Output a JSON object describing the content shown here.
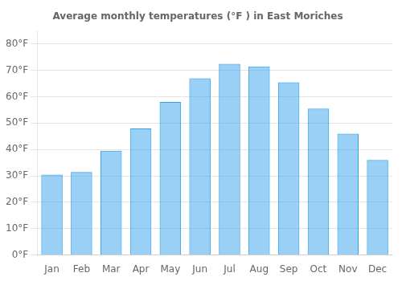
{
  "chart_data": {
    "type": "bar",
    "title": "Average monthly temperatures (°F ) in East Moriches",
    "categories": [
      "Jan",
      "Feb",
      "Mar",
      "Apr",
      "May",
      "Jun",
      "Jul",
      "Aug",
      "Sep",
      "Oct",
      "Nov",
      "Dec"
    ],
    "values": [
      30.5,
      31.5,
      39.5,
      48.0,
      58.0,
      67.0,
      72.5,
      71.5,
      65.5,
      55.5,
      46.0,
      36.0
    ],
    "ylim": [
      0,
      85
    ],
    "yticks": [
      {
        "value": 0,
        "label": "0°F"
      },
      {
        "value": 10,
        "label": "10°F"
      },
      {
        "value": 20,
        "label": "20°F"
      },
      {
        "value": 30,
        "label": "30°F"
      },
      {
        "value": 40,
        "label": "40°F"
      },
      {
        "value": 50,
        "label": "50°F"
      },
      {
        "value": 60,
        "label": "60°F"
      },
      {
        "value": 70,
        "label": "70°F"
      },
      {
        "value": 80,
        "label": "80°F"
      }
    ],
    "grid": true
  }
}
